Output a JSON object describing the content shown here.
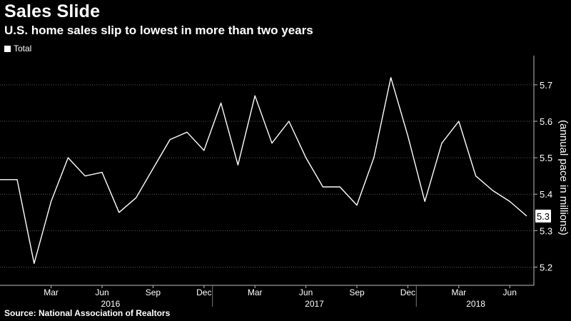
{
  "title": "Sales Slide",
  "subtitle": "U.S. home sales slip to lowest in more than two years",
  "legend": {
    "label": "Total",
    "color": "#ffffff"
  },
  "source": "Source: National Association of Realtors",
  "chart_data": {
    "type": "line",
    "title": "Sales Slide",
    "subtitle": "U.S. home sales slip to lowest in more than two years",
    "ylabel": "(annual pace in millions)",
    "ylim": [
      5.15,
      5.78
    ],
    "yticks": [
      "5.2",
      "5.3",
      "5.4",
      "5.5",
      "5.6",
      "5.7"
    ],
    "grid": true,
    "legend_position": "top-left",
    "last_value_label": "5.3",
    "x": [
      "Jan 2016",
      "Feb 2016",
      "Mar 2016",
      "Apr 2016",
      "May 2016",
      "Jun 2016",
      "Jul 2016",
      "Aug 2016",
      "Sep 2016",
      "Oct 2016",
      "Nov 2016",
      "Dec 2016",
      "Jan 2017",
      "Feb 2017",
      "Mar 2017",
      "Apr 2017",
      "May 2017",
      "Jun 2017",
      "Jul 2017",
      "Aug 2017",
      "Sep 2017",
      "Oct 2017",
      "Nov 2017",
      "Dec 2017",
      "Jan 2018",
      "Feb 2018",
      "Mar 2018",
      "Apr 2018",
      "May 2018",
      "Jun 2018",
      "Jul 2018"
    ],
    "series": [
      {
        "name": "Total",
        "color": "#ffffff",
        "prefix_values": [
          5.44,
          5.44
        ],
        "values": [
          5.44,
          5.21,
          5.38,
          5.5,
          5.45,
          5.46,
          5.35,
          5.39,
          5.47,
          5.55,
          5.57,
          5.52,
          5.65,
          5.48,
          5.67,
          5.54,
          5.6,
          5.5,
          5.42,
          5.42,
          5.37,
          5.5,
          5.72,
          5.56,
          5.38,
          5.54,
          5.6,
          5.45,
          5.41,
          5.38,
          5.34
        ]
      }
    ],
    "x_month_labels": [
      "Mar",
      "Jun",
      "Sep",
      "Dec",
      "Mar",
      "Jun",
      "Sep",
      "Dec",
      "Mar",
      "Jun"
    ],
    "x_year_labels": [
      "2016",
      "2017",
      "2018"
    ]
  }
}
